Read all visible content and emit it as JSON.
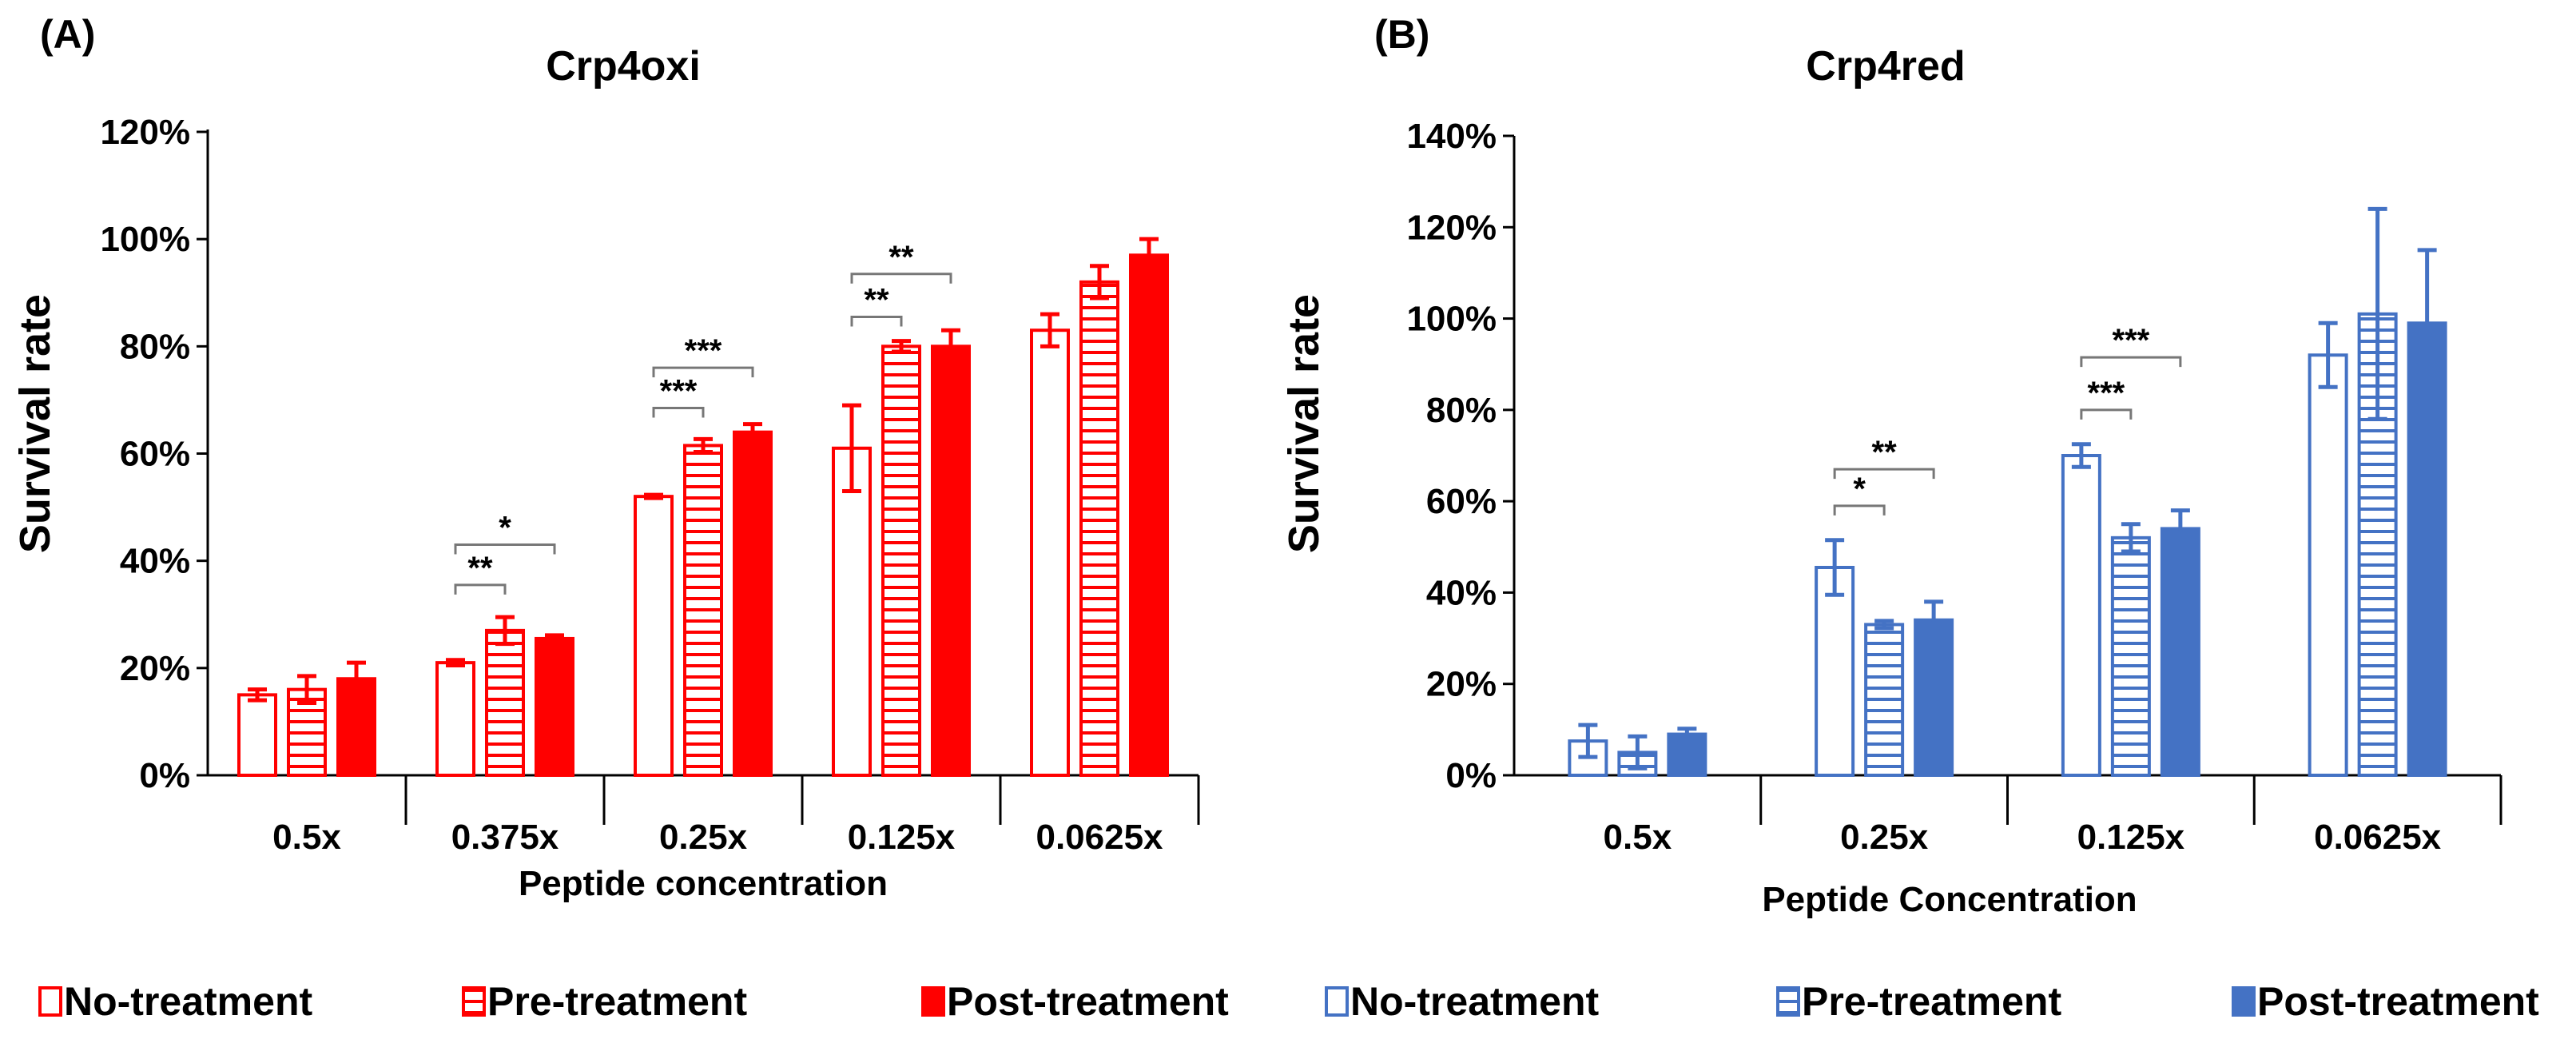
{
  "chart_data": [
    {
      "type": "bar",
      "panel_label": "(A)",
      "title": "Crp4oxi",
      "xlabel": "Peptide concentration",
      "ylabel": "Survival rate",
      "ylim": [
        0,
        1.2
      ],
      "yticks": [
        "0%",
        "20%",
        "40%",
        "60%",
        "80%",
        "100%",
        "120%"
      ],
      "color": "#ff0000",
      "categories": [
        "0.5x",
        "0.375x",
        "0.25x",
        "0.125x",
        "0.0625x"
      ],
      "series": [
        {
          "name": "No-treatment",
          "style": "open",
          "values": [
            0.15,
            0.21,
            0.52,
            0.61,
            0.83
          ],
          "errors": [
            0.01,
            0.005,
            0.003,
            0.08,
            0.03
          ]
        },
        {
          "name": "Pre-treatment",
          "style": "striped",
          "values": [
            0.16,
            0.27,
            0.615,
            0.8,
            0.92
          ],
          "errors": [
            0.025,
            0.025,
            0.012,
            0.01,
            0.03
          ]
        },
        {
          "name": "Post-treatment",
          "style": "filled",
          "values": [
            0.18,
            0.255,
            0.64,
            0.8,
            0.97
          ],
          "errors": [
            0.03,
            0.006,
            0.015,
            0.03,
            0.03
          ]
        }
      ],
      "legend": [
        "No-treatment",
        "Pre-treatment",
        "Post-treatment"
      ],
      "significance": [
        {
          "category": 1,
          "from": 0,
          "to": 1,
          "label": "**",
          "level": 0.355
        },
        {
          "category": 1,
          "from": 0,
          "to": 2,
          "label": "*",
          "level": 0.43
        },
        {
          "category": 2,
          "from": 0,
          "to": 1,
          "label": "***",
          "level": 0.685
        },
        {
          "category": 2,
          "from": 0,
          "to": 2,
          "label": "***",
          "level": 0.76
        },
        {
          "category": 3,
          "from": 0,
          "to": 1,
          "label": "**",
          "level": 0.855
        },
        {
          "category": 3,
          "from": 0,
          "to": 2,
          "label": "**",
          "level": 0.935
        }
      ]
    },
    {
      "type": "bar",
      "panel_label": "(B)",
      "title": "Crp4red",
      "xlabel": "Peptide Concentration",
      "ylabel": "Survival rate",
      "ylim": [
        0,
        1.4
      ],
      "yticks": [
        "0%",
        "20%",
        "40%",
        "60%",
        "80%",
        "100%",
        "120%",
        "140%"
      ],
      "color": "#4472c4",
      "categories": [
        "0.5x",
        "0.25x",
        "0.125x",
        "0.0625x"
      ],
      "series": [
        {
          "name": "No-treatment",
          "style": "open",
          "values": [
            0.075,
            0.455,
            0.7,
            0.92
          ],
          "errors": [
            0.035,
            0.06,
            0.025,
            0.07
          ]
        },
        {
          "name": "Pre-treatment",
          "style": "striped",
          "values": [
            0.05,
            0.33,
            0.52,
            1.01
          ],
          "errors": [
            0.035,
            0.008,
            0.03,
            0.23
          ]
        },
        {
          "name": "Post-treatment",
          "style": "filled",
          "values": [
            0.09,
            0.34,
            0.54,
            0.99
          ],
          "errors": [
            0.012,
            0.04,
            0.04,
            0.16
          ]
        }
      ],
      "legend": [
        "No-treatment",
        "Pre-treatment",
        "Post-treatment"
      ],
      "significance": [
        {
          "category": 1,
          "from": 0,
          "to": 1,
          "label": "*",
          "level": 0.59
        },
        {
          "category": 1,
          "from": 0,
          "to": 2,
          "label": "**",
          "level": 0.67
        },
        {
          "category": 2,
          "from": 0,
          "to": 1,
          "label": "***",
          "level": 0.8
        },
        {
          "category": 2,
          "from": 0,
          "to": 2,
          "label": "***",
          "level": 0.915
        }
      ]
    }
  ]
}
